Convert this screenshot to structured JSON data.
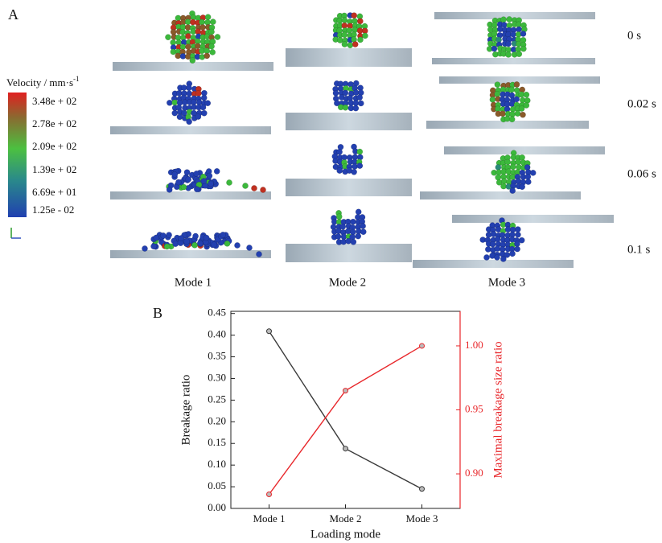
{
  "panel_a": {
    "label": "A",
    "colorbar": {
      "title": "Velocity / mm·s",
      "title_sup": "-1",
      "labels": [
        "3.48e + 02",
        "2.78e + 02",
        "2.09e + 02",
        "1.39e + 02",
        "6.69e + 01",
        "1.25e - 02"
      ]
    },
    "times": [
      "0 s",
      "0.02 s",
      "0.06 s",
      "0.1 s"
    ],
    "modes": [
      "Mode 1",
      "Mode 2",
      "Mode 3"
    ]
  },
  "chart_data": {
    "type": "line",
    "panel_label": "B",
    "x_label": "Loading mode",
    "y_label": "Breakage ratio",
    "y2_label": "Maximal breakage size ratio",
    "categories": [
      "Mode 1",
      "Mode 2",
      "Mode 3"
    ],
    "ylim": [
      0,
      0.455
    ],
    "yticks": [
      {
        "value": 0,
        "label": "0.00"
      },
      {
        "value": 0.05,
        "label": "0.05"
      },
      {
        "value": 0.1,
        "label": "0.10"
      },
      {
        "value": 0.15,
        "label": "0.15"
      },
      {
        "value": 0.2,
        "label": "0.20"
      },
      {
        "value": 0.25,
        "label": "0.25"
      },
      {
        "value": 0.3,
        "label": "0.30"
      },
      {
        "value": 0.35,
        "label": "0.35"
      },
      {
        "value": 0.4,
        "label": "0.40"
      },
      {
        "value": 0.45,
        "label": "0.45"
      }
    ],
    "y2lim": [
      0.873,
      1.027
    ],
    "y2ticks": [
      {
        "value": 0.9,
        "label": "0.90"
      },
      {
        "value": 0.95,
        "label": "0.95"
      },
      {
        "value": 1,
        "label": "1.00"
      }
    ],
    "series": [
      {
        "color": "#3a3a3a",
        "values": [
          0.409,
          0.138,
          0.045
        ]
      },
      {
        "color": "#e8262a",
        "axis": "y2",
        "values": [
          0.884,
          0.965,
          1.0
        ]
      }
    ]
  }
}
